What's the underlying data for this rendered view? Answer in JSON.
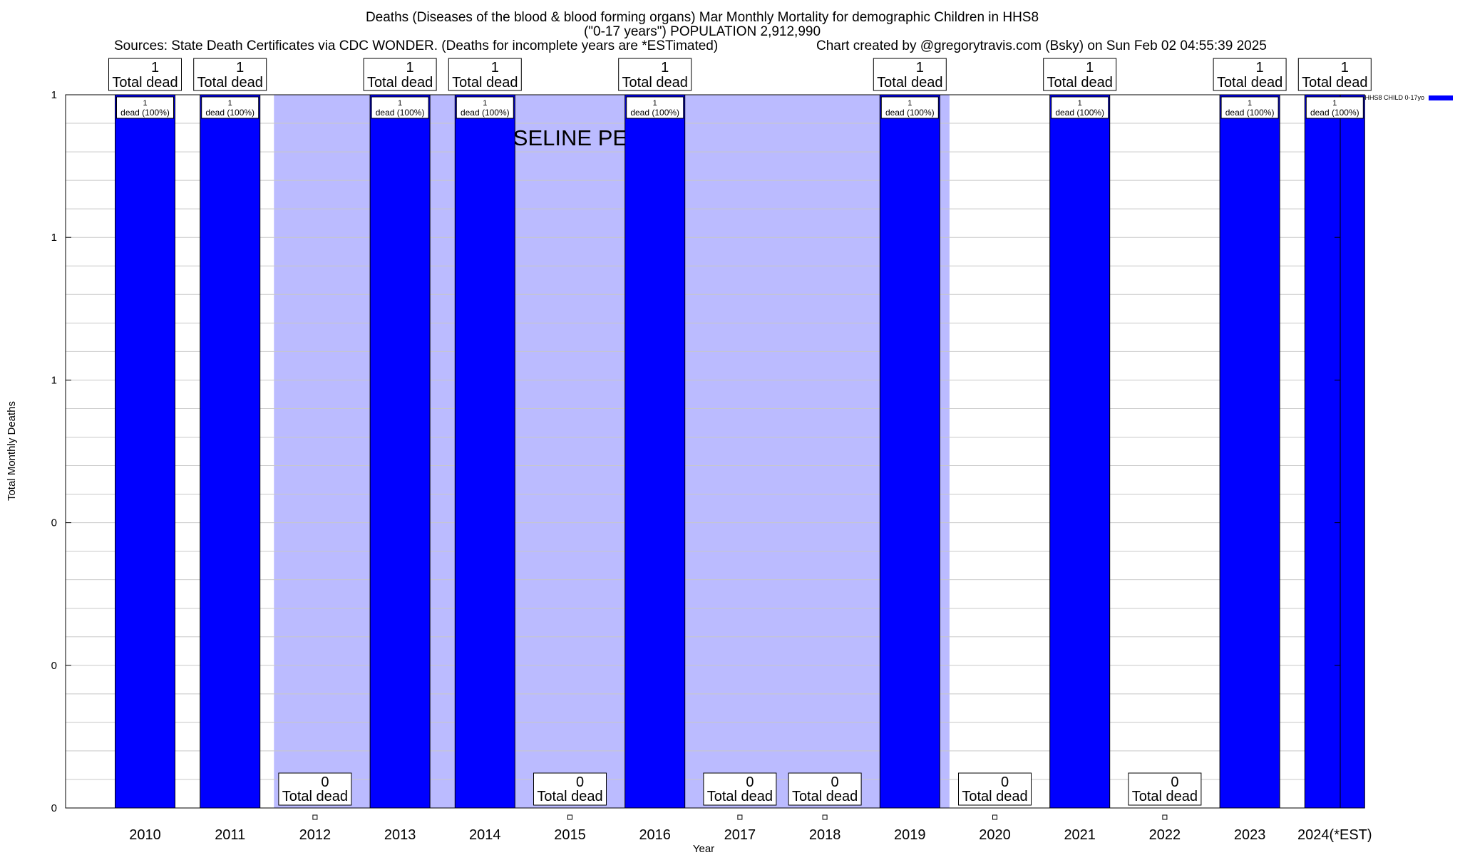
{
  "chart_data": {
    "type": "bar",
    "title_line1": "Deaths (Diseases of the blood & blood forming organs) Mar Monthly Mortality for demographic Children in HHS8",
    "title_line2": "(\"0-17 years\") POPULATION 2,912,990",
    "sources": "Sources: State Death Certificates via CDC WONDER. (Deaths for incomplete years are *ESTimated)",
    "credit": "Chart created by @gregorytravis.com (Bsky) on Sun Feb 02 04:55:39 2025",
    "xlabel": "Year",
    "ylabel": "Total Monthly Deaths",
    "ylim": [
      0,
      1
    ],
    "y_tick_labels": [
      "0",
      "0",
      "0",
      "1",
      "1",
      "1"
    ],
    "categories": [
      "2010",
      "2011",
      "2012",
      "2013",
      "2014",
      "2015",
      "2016",
      "2017",
      "2018",
      "2019",
      "2020",
      "2021",
      "2022",
      "2023",
      "2024(*EST)"
    ],
    "series": [
      {
        "name": "HHS8 CHILD 0-17yo",
        "color": "#0000ff",
        "values": [
          1,
          1,
          0,
          1,
          1,
          0,
          1,
          0,
          0,
          1,
          0,
          1,
          0,
          1,
          1
        ]
      }
    ],
    "total_label_suffix": "Total dead",
    "bar_label_suffix": "dead (100%)",
    "baseline_label": "BASELINE PERIOD",
    "baseline_range": [
      "2012",
      "2019"
    ],
    "baseline_color": "#bbbbff",
    "grid": true,
    "legend_position": "top-right"
  }
}
